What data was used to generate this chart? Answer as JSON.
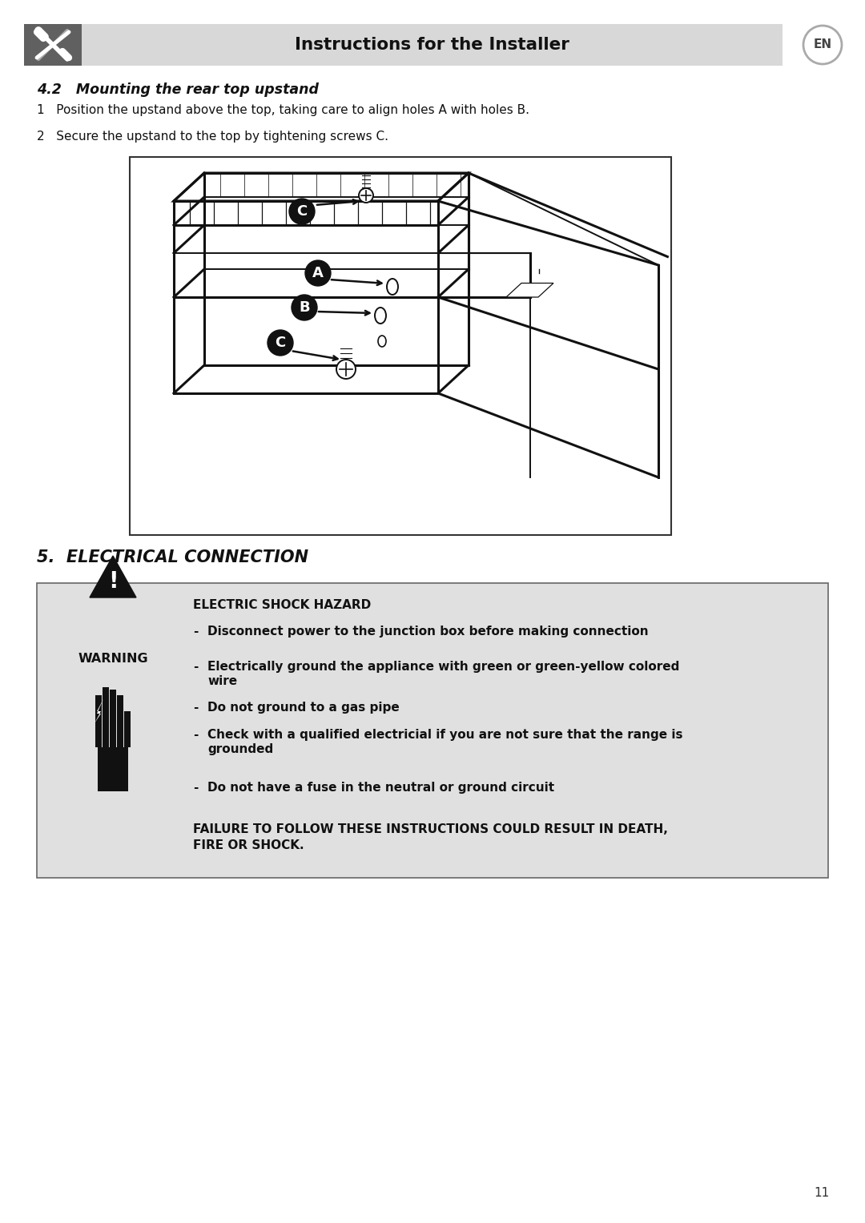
{
  "page_bg": "#ffffff",
  "header_bg": "#d8d8d8",
  "header_text": "Instructions for the Installer",
  "section_42_title": "4.2   Mounting the rear top upstand",
  "step1_text": "1   Position the upstand above the top, taking care to align holes A with holes B.",
  "step2_text": "2   Secure the upstand to the top by tightening screws C.",
  "section5_title": "5.  ELECTRICAL CONNECTION",
  "warning_box_bg": "#e0e0e0",
  "warning_title": "ELECTRIC SHOCK HAZARD",
  "bullet1": "Disconnect power to the junction box before making connection",
  "bullet2a": "Electrically ground the appliance with green or green-yellow colored",
  "bullet2b": "wire",
  "bullet3": "Do not ground to a gas pipe",
  "bullet4a": "Check with a qualified electricial if you are not sure that the range is",
  "bullet4b": "grounded",
  "bullet5": "Do not have a fuse in the neutral or ground circuit",
  "warning_footer1": "FAILURE TO FOLLOW THESE INSTRUCTIONS COULD RESULT IN DEATH,",
  "warning_footer2": "FIRE OR SHOCK.",
  "page_number": "11"
}
